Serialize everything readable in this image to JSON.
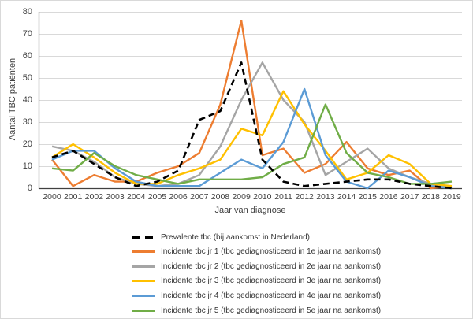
{
  "chart_data": {
    "type": "line",
    "title": "",
    "x_axis_title": "Jaar van diagnose",
    "y_axis_title": "Aantal TBC patiënten",
    "years": [
      2000,
      2001,
      2002,
      2003,
      2004,
      2005,
      2006,
      2007,
      2008,
      2009,
      2010,
      2011,
      2012,
      2013,
      2014,
      2015,
      2016,
      2017,
      2018,
      2019
    ],
    "yticks": [
      0,
      10,
      20,
      30,
      40,
      50,
      60,
      70,
      80
    ],
    "ylim": [
      0,
      80
    ],
    "grid": true,
    "legend_position": "bottom-left",
    "gridline_color": "#d9d9d9",
    "axis_color": "#404040",
    "series": [
      {
        "name": "Prevalente tbc (bij aankomst in Nederland)",
        "color": "#000000",
        "dashed": true,
        "values": [
          14,
          17,
          11,
          5,
          1,
          3,
          8,
          31,
          35,
          57,
          13,
          3,
          1,
          2,
          3,
          4,
          4,
          2,
          1,
          0
        ]
      },
      {
        "name": "Incidente tbc jr 1 (tbc gediagnosticeerd in 1e jaar na aankomst)",
        "color": "#ED7D31",
        "dashed": false,
        "values": [
          13,
          1,
          6,
          3,
          3,
          7,
          10,
          16,
          38,
          76,
          15,
          18,
          7,
          11,
          21,
          9,
          6,
          8,
          0,
          1
        ]
      },
      {
        "name": "Incidente tbc jr 2 (tbc gediagnosticeerd in 2e jaar na aankomst)",
        "color": "#A5A5A5",
        "dashed": false,
        "values": [
          19,
          17,
          12,
          5,
          2,
          1,
          2,
          6,
          19,
          40,
          57,
          40,
          30,
          6,
          12,
          18,
          9,
          5,
          2,
          0
        ]
      },
      {
        "name": "Incidente tbc jr 3 (tbc gediagnosticeerd in 3e jaar na aankomst)",
        "color": "#FFC000",
        "dashed": false,
        "values": [
          14,
          20,
          14,
          7,
          2,
          2,
          6,
          9,
          13,
          27,
          24,
          44,
          29,
          17,
          4,
          7,
          15,
          11,
          2,
          1
        ]
      },
      {
        "name": "Incidente tbc jr 4 (tbc gediagnosticeerd in 4e jaar na aankomst)",
        "color": "#5B9BD5",
        "dashed": false,
        "values": [
          13,
          17,
          17,
          9,
          3,
          1,
          1,
          1,
          7,
          13,
          9,
          21,
          45,
          15,
          3,
          0,
          8,
          5,
          1,
          0
        ]
      },
      {
        "name": "Incidente tbc jr 5 (tbc gediagnosticeerd in 5e jaar na aankomst)",
        "color": "#70AD47",
        "dashed": false,
        "values": [
          9,
          8,
          16,
          10,
          6,
          4,
          2,
          4,
          4,
          4,
          5,
          11,
          14,
          38,
          16,
          7,
          5,
          2,
          2,
          3
        ]
      }
    ]
  }
}
